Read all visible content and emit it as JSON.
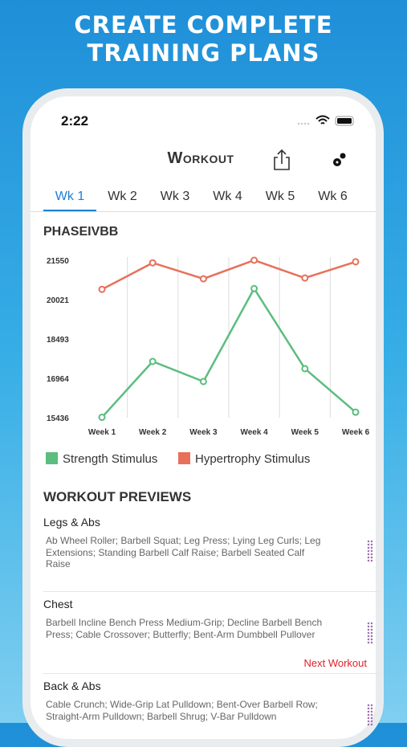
{
  "banner": {
    "lines": [
      "CREATE COMPLETE",
      "TRAINING PLANS"
    ]
  },
  "status_bar": {
    "time": "2:22"
  },
  "header": {
    "title": "Workout"
  },
  "tabs": [
    "Wk 1",
    "Wk 2",
    "Wk 3",
    "Wk 4",
    "Wk 5",
    "Wk 6"
  ],
  "chart_data": {
    "type": "line",
    "title": "PHASEIVBB",
    "categories": [
      "Week 1",
      "Week 2",
      "Week 3",
      "Week 4",
      "Week 5",
      "Week 6"
    ],
    "series": [
      {
        "name": "Strength Stimulus",
        "color": "#5bbd7f",
        "values": [
          15450,
          17620,
          16840,
          20450,
          17340,
          15650
        ]
      },
      {
        "name": "Hypertrophy Stimulus",
        "color": "#e8705a",
        "values": [
          20420,
          21450,
          20830,
          21550,
          20860,
          21490
        ]
      }
    ],
    "ylim": [
      15436,
      21550
    ],
    "yticks": [
      15436,
      16964,
      18493,
      20021,
      21550
    ],
    "grid": true
  },
  "previews": {
    "heading": "WORKOUT PREVIEWS",
    "items": [
      {
        "title": "Legs & Abs",
        "exercises": "Ab Wheel Roller; Barbell Squat; Leg Press; Lying Leg Curls; Leg Extensions; Standing Barbell Calf Raise; Barbell Seated Calf Raise"
      },
      {
        "title": "Chest",
        "exercises": "Barbell Incline Bench Press Medium-Grip; Decline Barbell Bench Press; Cable Crossover; Butterfly; Bent-Arm Dumbbell Pullover",
        "badge": "Next Workout"
      },
      {
        "title": "Back & Abs",
        "exercises": "Cable Crunch; Wide-Grip Lat Pulldown; Bent-Over Barbell Row; Straight-Arm Pulldown; Barbell Shrug; V-Bar Pulldown"
      }
    ]
  }
}
